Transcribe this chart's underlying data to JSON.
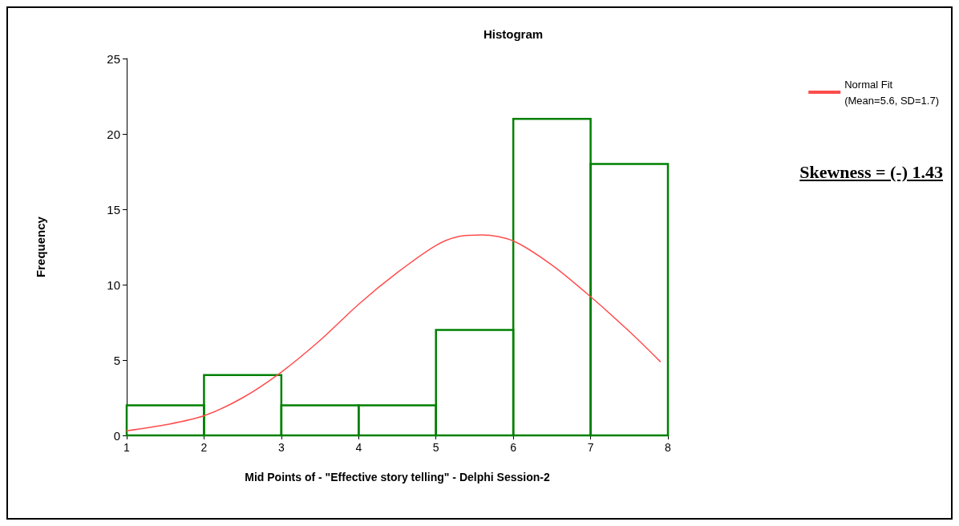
{
  "chart_data": {
    "type": "histogram",
    "title": "Histogram",
    "xlabel": "Mid Points of - \"Effective story telling\" - Delphi Session-2",
    "ylabel": "Frequency",
    "bins": [
      1,
      2,
      3,
      4,
      5,
      6,
      7,
      8
    ],
    "values": [
      2,
      4,
      2,
      2,
      7,
      21,
      18
    ],
    "color": "#008000",
    "series": [
      {
        "type": "line",
        "name": "Normal Fit\n(Mean=5.6, SD=1.7)",
        "color": "#ff4d4d",
        "x": [
          1,
          1.5,
          2,
          2.5,
          3,
          3.5,
          4,
          4.5,
          5,
          5.3,
          5.6,
          6,
          6.5,
          7,
          7.5,
          7.9
        ],
        "values": [
          0.3,
          0.7,
          1.3,
          2.5,
          4.2,
          6.3,
          8.7,
          10.8,
          12.6,
          13.2,
          13.3,
          12.9,
          11.3,
          9.2,
          6.9,
          4.9
        ]
      }
    ],
    "xlim": [
      1,
      8
    ],
    "xticks": [
      1,
      2,
      3,
      4,
      5,
      6,
      7,
      8
    ],
    "ylim": [
      0,
      25
    ],
    "yticks": [
      0,
      5,
      10,
      15,
      20,
      25
    ],
    "grid": false,
    "legend": "top right",
    "marker": "none",
    "line_style": "solid",
    "annotations": [
      "Skewness = (-) 1.43"
    ]
  }
}
